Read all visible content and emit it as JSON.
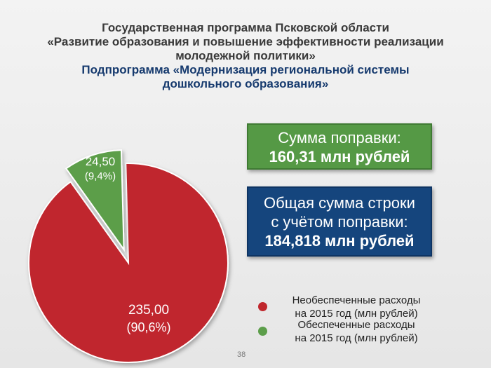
{
  "header": {
    "title_lines": [
      "Государственная программа Псковской области",
      "«Развитие образования и повышение эффективности реализации",
      "молодежной политики»"
    ],
    "subtitle_lines": [
      "Подпрограмма «Модернизация региональной системы",
      "дошкольного образования»"
    ]
  },
  "chart_data": {
    "type": "pie",
    "slices": [
      {
        "label": "Необеспеченные расходы на 2015 год  (млн рублей)",
        "value": 235.0,
        "value_label": "235,00",
        "percent_label": "(90,6%)",
        "color": "#c0272d"
      },
      {
        "label": "Обеспеченные расходы на 2015 год (млн рублей)",
        "value": 24.5,
        "value_label": "24,50",
        "percent_label": "(9,4%)",
        "color": "#5c9e4a"
      }
    ]
  },
  "amendment_box": {
    "line1": "Сумма поправки:",
    "line2": "160,31 млн рублей",
    "color": "#559945"
  },
  "total_box": {
    "line1": "Общая сумма строки",
    "line2": "с учётом поправки:",
    "line3": "184,818 млн рублей",
    "color": "#15457d"
  },
  "legend": [
    {
      "line1": "Необеспеченные расходы",
      "line2": "на 2015 год  (млн рублей)",
      "color": "#c0272d",
      "icon": "legend-dot-red"
    },
    {
      "line1": "Обеспеченные расходы",
      "line2": "на 2015 год (млн рублей)",
      "color": "#5c9e4a",
      "icon": "legend-dot-green"
    }
  ],
  "page_number": "38"
}
